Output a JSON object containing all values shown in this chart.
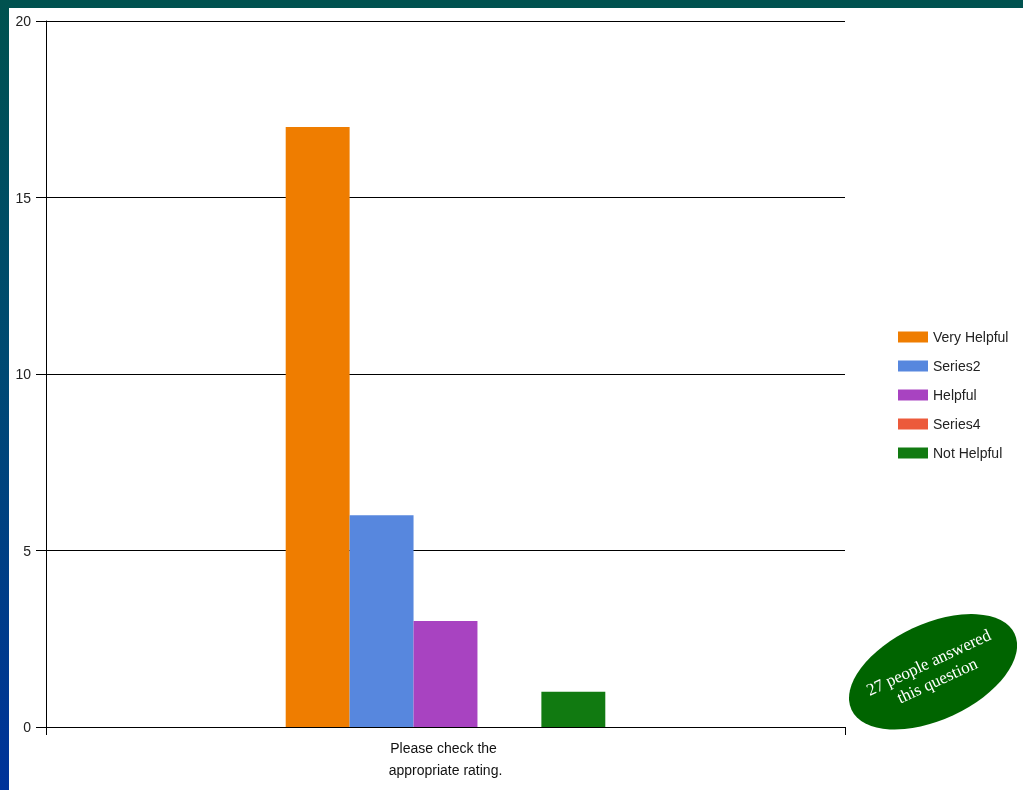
{
  "chart_data": {
    "type": "bar",
    "categories": [
      "Please check the appropriate rating."
    ],
    "series": [
      {
        "name": "Very Helpful",
        "color": "#ef7d00",
        "values": [
          17
        ]
      },
      {
        "name": "Series2",
        "color": "#5787de",
        "values": [
          6
        ]
      },
      {
        "name": "Helpful",
        "color": "#a843c1",
        "values": [
          3
        ]
      },
      {
        "name": "Series4",
        "color": "#ec5a3b",
        "values": [
          0
        ]
      },
      {
        "name": "Not Helpful",
        "color": "#117a11",
        "values": [
          1
        ]
      }
    ],
    "ylim": [
      0,
      20
    ],
    "yticks": [
      0,
      5,
      10,
      15,
      20
    ],
    "grid": "y",
    "legend": "right",
    "annotations": [
      "27 people answered this question"
    ]
  }
}
